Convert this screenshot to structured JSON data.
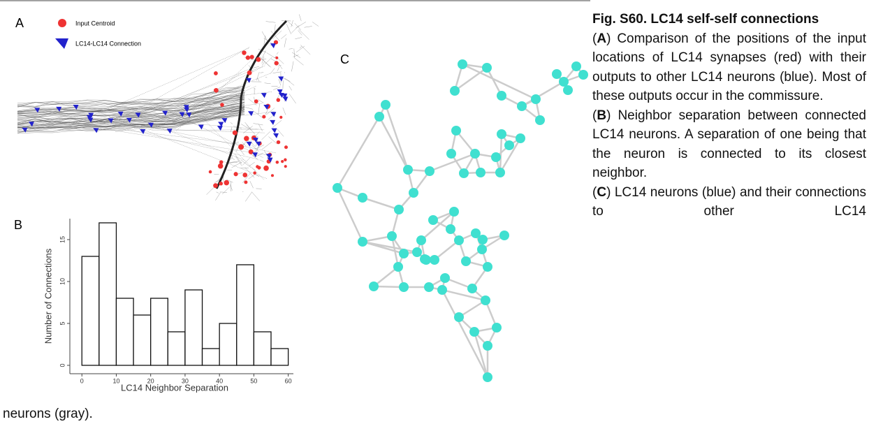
{
  "panels": {
    "a": {
      "label": "A",
      "legend": [
        "Input Centroid",
        "LC14-LC14 Connection"
      ]
    },
    "b": {
      "label": "B"
    },
    "c": {
      "label": "C"
    }
  },
  "chart_data": {
    "type": "histogram",
    "bins": [
      0,
      5,
      10,
      15,
      20,
      25,
      30,
      35,
      40,
      45,
      50,
      55,
      60
    ],
    "values": [
      13,
      17,
      8,
      6,
      8,
      4,
      9,
      2,
      5,
      12,
      4,
      2
    ],
    "color": "#ffffff",
    "xlabel": "LC14 Neighbor Separation",
    "ylabel": "Number of Connections",
    "xlim": [
      -3.5,
      61.5
    ],
    "ylim": [
      -1,
      17.5
    ],
    "xticks": [
      0,
      10,
      20,
      30,
      40,
      50,
      60
    ],
    "yticks": [
      0,
      5,
      10,
      15
    ]
  },
  "caption": {
    "title": "Fig. S60. LC14 self-self connections",
    "paragraphs": [
      {
        "prefix": "(",
        "label": "A",
        "text": ") Comparison of the positions of the input locations of LC14 synapses (red) with their outputs to other LC14 neurons (blue). Most of these outputs occur in the commissure."
      },
      {
        "prefix": "(",
        "label": "B",
        "text": ") Neighbor separation between connected LC14 neurons. A separation of one being that the neuron is connected to its closest neighbor."
      },
      {
        "prefix": "(",
        "label": "C",
        "text": ") LC14 neurons (blue) and their connections to other LC14",
        "continuation": "neurons (gray)."
      }
    ]
  }
}
